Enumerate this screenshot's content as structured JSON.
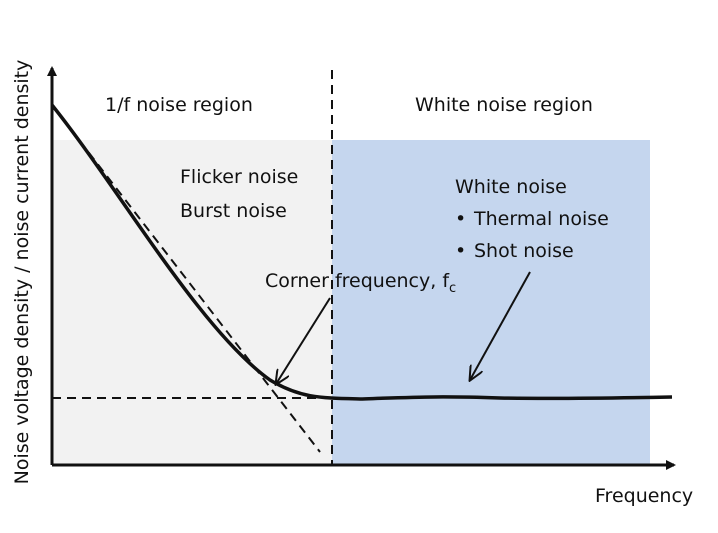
{
  "axes": {
    "y_label": "Noise voltage density / noise current density",
    "x_label": "Frequency"
  },
  "regions": [
    {
      "label": "1/f noise region",
      "sources": [
        "Flicker noise",
        "Burst noise"
      ]
    },
    {
      "label": "White noise region",
      "heading": "White noise",
      "sources": [
        "Thermal noise",
        "Shot noise"
      ]
    }
  ],
  "corner": {
    "text": "Corner frequency, f",
    "subscript": "c"
  }
}
